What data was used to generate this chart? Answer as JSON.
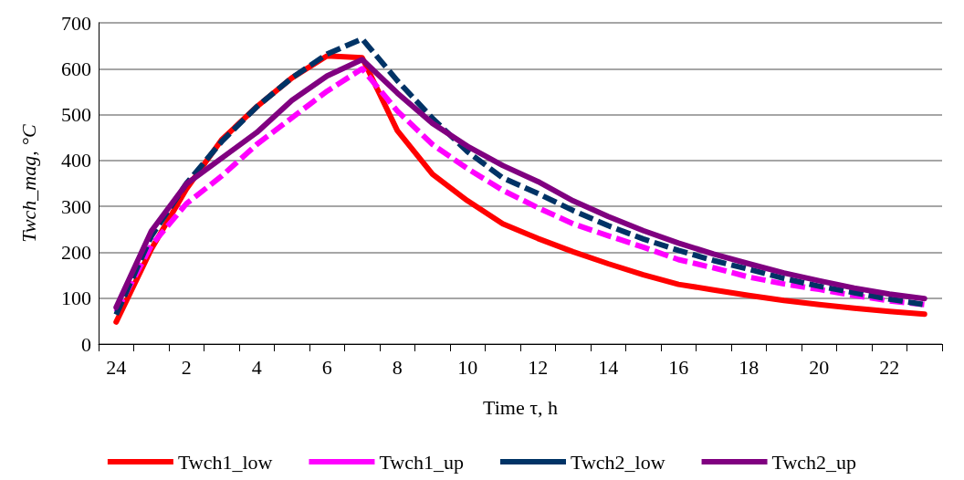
{
  "chart_data": {
    "type": "line",
    "xlabel": "Time τ, h",
    "ylabel": "Twch_mag, °C",
    "categories": [
      "24",
      null,
      "2",
      null,
      "4",
      null,
      "6",
      null,
      "8",
      null,
      "10",
      null,
      "12",
      null,
      "14",
      null,
      "16",
      null,
      "18",
      null,
      "20",
      null,
      "22",
      null
    ],
    "ylim": [
      0,
      700
    ],
    "yticks": [
      0,
      100,
      200,
      300,
      400,
      500,
      600,
      700
    ],
    "grid": "y",
    "legend": "bottom",
    "marker": "none",
    "series": [
      {
        "name": "Twch1_low",
        "color": "#ff0000",
        "line_style": "solid",
        "values": [
          48,
          207,
          338,
          445,
          517,
          580,
          628,
          624,
          465,
          370,
          312,
          262,
          230,
          201,
          175,
          151,
          130,
          118,
          106,
          95,
          86,
          78,
          71,
          65
        ]
      },
      {
        "name": "Twch1_up",
        "color": "#ff00ff",
        "line_style": "dashed",
        "values": [
          70,
          215,
          306,
          366,
          435,
          493,
          551,
          600,
          508,
          435,
          382,
          335,
          297,
          262,
          236,
          211,
          184,
          166,
          146,
          131,
          119,
          106,
          94,
          86
        ]
      },
      {
        "name": "Twch2_low",
        "color": "#003366",
        "line_style": "dashed",
        "values": [
          64,
          235,
          350,
          441,
          517,
          580,
          632,
          665,
          574,
          492,
          419,
          362,
          328,
          291,
          258,
          229,
          204,
          182,
          163,
          143,
          126,
          112,
          98,
          86
        ]
      },
      {
        "name": "Twch2_up",
        "color": "#800080",
        "line_style": "solid",
        "values": [
          80,
          246,
          349,
          405,
          461,
          531,
          584,
          620,
          547,
          481,
          431,
          389,
          354,
          312,
          278,
          247,
          220,
          196,
          175,
          155,
          138,
          122,
          109,
          99
        ]
      }
    ]
  }
}
